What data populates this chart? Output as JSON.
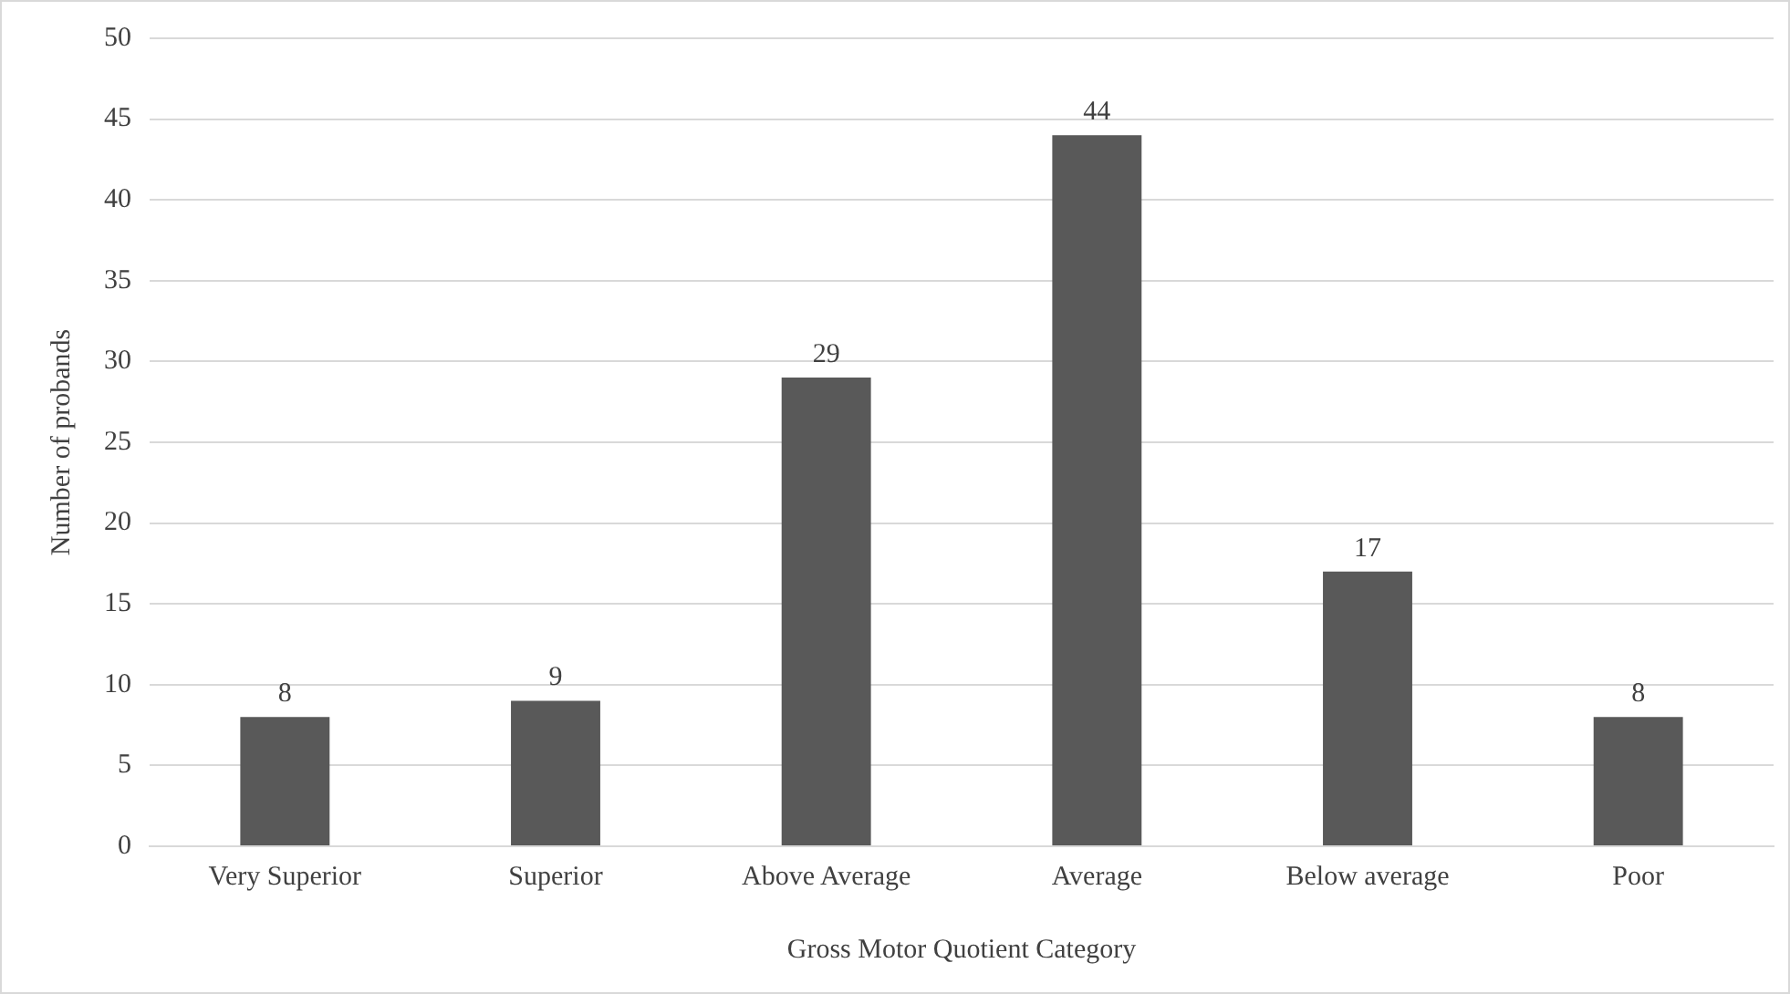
{
  "chart_data": {
    "type": "bar",
    "xlabel": "Gross Motor Quotient Category",
    "ylabel": "Number of probands",
    "categories": [
      "Very Superior",
      "Superior",
      "Above Average",
      "Average",
      "Below average",
      "Poor"
    ],
    "values": [
      8,
      9,
      29,
      44,
      17,
      8
    ],
    "color": "#595959",
    "ylim": [
      0,
      50
    ],
    "yticks": [
      0,
      5,
      10,
      15,
      20,
      25,
      30,
      35,
      40,
      45,
      50
    ],
    "grid": "y",
    "data_labels": true,
    "legend": false
  }
}
